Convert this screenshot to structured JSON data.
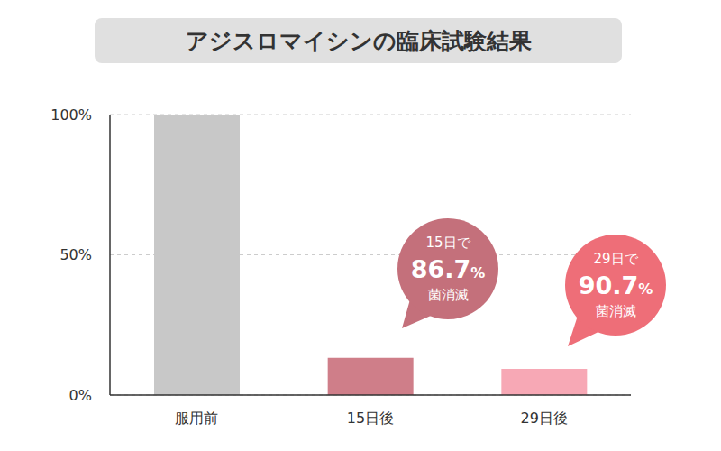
{
  "chart_data": {
    "type": "bar",
    "title": "アジスロマイシンの臨床試験結果",
    "categories": [
      "服用前",
      "15日後",
      "29日後"
    ],
    "values": [
      100,
      13.3,
      9.3
    ],
    "colors": [
      "#c8c8c8",
      "#cf7e89",
      "#f7a8b5"
    ],
    "ylim": [
      0,
      100
    ],
    "yticks": [
      {
        "value": 0,
        "label": "0%"
      },
      {
        "value": 50,
        "label": "50%"
      },
      {
        "value": 100,
        "label": "100%"
      }
    ],
    "grid": true,
    "annotations": [
      {
        "category": "15日後",
        "text": [
          "15日で",
          "86.7%",
          "菌消滅"
        ],
        "color": "#c4707b"
      },
      {
        "category": "29日後",
        "text": [
          "29日で",
          "90.7%",
          "菌消滅"
        ],
        "color": "#ee6e78"
      }
    ]
  }
}
